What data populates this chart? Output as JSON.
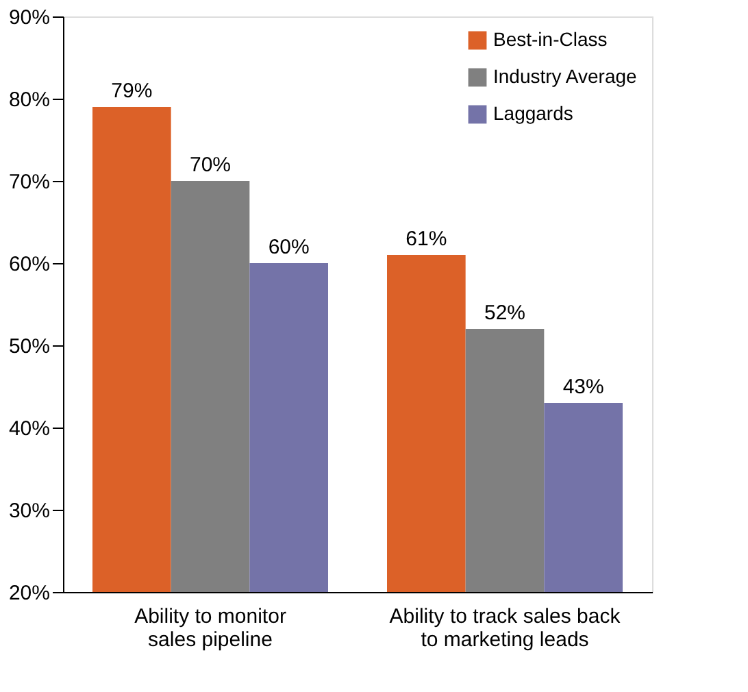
{
  "chart_data": {
    "type": "bar",
    "categories": [
      "Ability to monitor\nsales pipeline",
      "Ability to track sales back\nto marketing leads"
    ],
    "series": [
      {
        "name": "Best-in-Class",
        "color": "#dc6128",
        "values": [
          79,
          61
        ],
        "value_labels": [
          "79%",
          "61%"
        ]
      },
      {
        "name": "Industry Average",
        "color": "#808080",
        "values": [
          70,
          52
        ],
        "value_labels": [
          "70%",
          "52%"
        ]
      },
      {
        "name": "Laggards",
        "color": "#7473a8",
        "values": [
          60,
          43
        ],
        "value_labels": [
          "60%",
          "43%"
        ]
      }
    ],
    "ylim": [
      20,
      90
    ],
    "yticks": [
      {
        "value": 20,
        "label": "20%"
      },
      {
        "value": 30,
        "label": "30%"
      },
      {
        "value": 40,
        "label": "40%"
      },
      {
        "value": 50,
        "label": "50%"
      },
      {
        "value": 60,
        "label": "60%"
      },
      {
        "value": 70,
        "label": "70%"
      },
      {
        "value": 80,
        "label": "80%"
      },
      {
        "value": 90,
        "label": "90%"
      }
    ],
    "legend": "top right",
    "grid": false
  }
}
